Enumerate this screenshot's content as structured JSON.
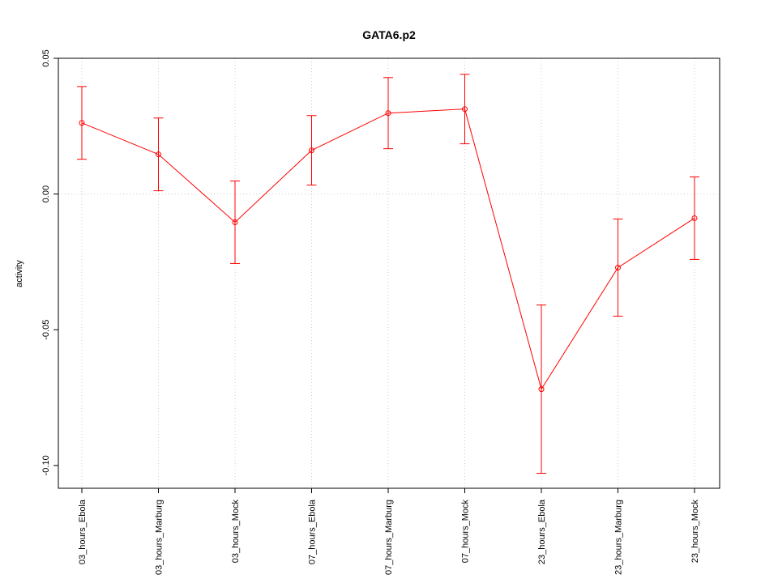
{
  "chart_data": {
    "type": "line",
    "title": "GATA6.p2",
    "y_label": "activity",
    "categories": [
      "03_hours_Ebola",
      "03_hours_Marburg",
      "03_hours_Mock",
      "07_hours_Ebola",
      "07_hours_Marburg",
      "07_hours_Mock",
      "23_hours_Ebola",
      "23_hours_Marburg",
      "23_hours_Mock"
    ],
    "series": [
      {
        "color": "#ff0000",
        "values": [
          0.0262,
          0.0146,
          -0.0104,
          0.0161,
          0.0298,
          0.0313,
          -0.0719,
          -0.0271,
          -0.0089
        ],
        "errors": [
          0.0134,
          0.0134,
          0.0152,
          0.0128,
          0.0131,
          0.0128,
          0.031,
          0.0179,
          0.0152
        ]
      }
    ],
    "ylim": [
      -0.1084,
      0.05
    ],
    "yticks": [
      {
        "value": 0.05,
        "label": "0.05"
      },
      {
        "value": 0,
        "label": "0.00"
      },
      {
        "value": -0.05,
        "label": "-0.05"
      },
      {
        "value": -0.1,
        "label": "-0.10"
      }
    ],
    "hline": 0,
    "grid": true
  }
}
